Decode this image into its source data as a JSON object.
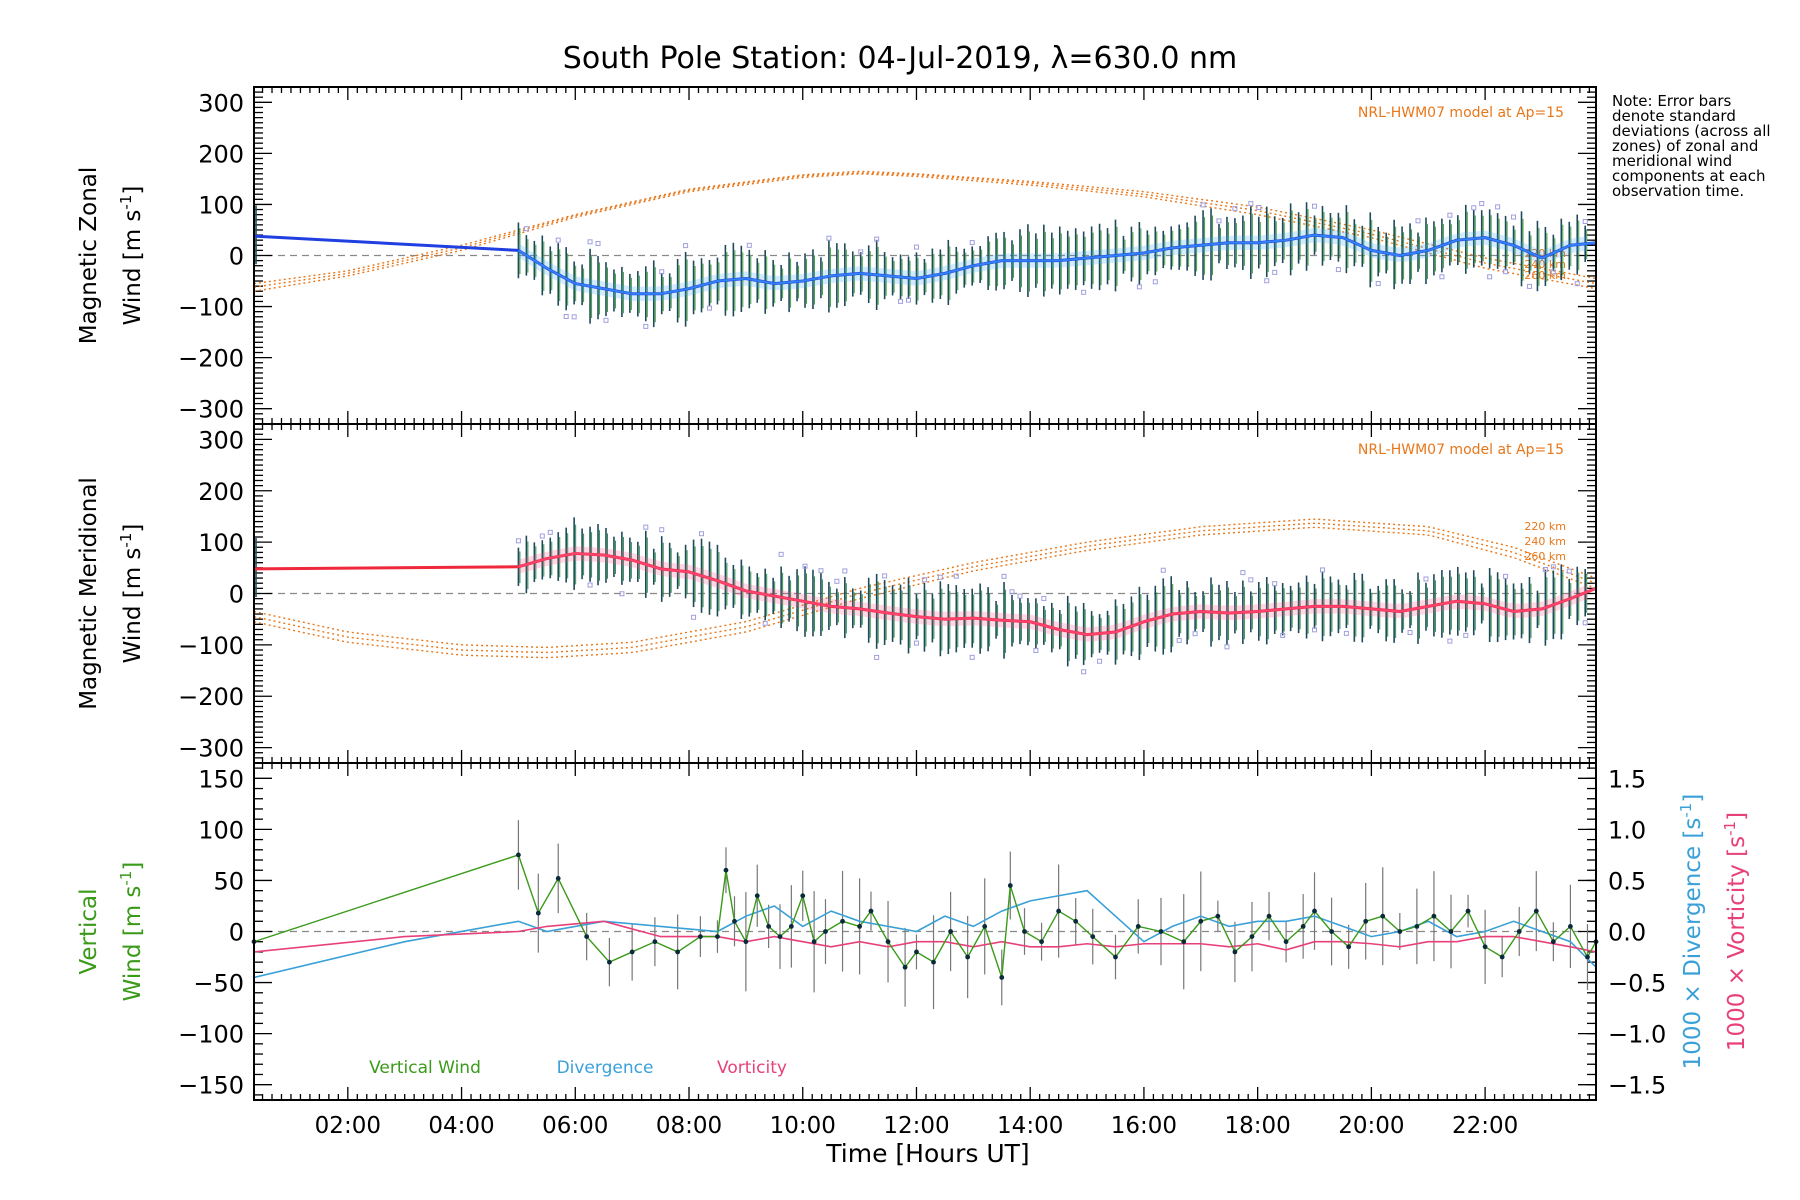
{
  "figure": {
    "title": "South Pole Station: 04-Jul-2019, λ=630.0 nm",
    "xlabel": "Time [Hours UT]",
    "note": "Note: Error bars denote standard deviations (across all zones) of zonal and meridional wind components at each observation time."
  },
  "colors": {
    "zonal": "#1f3fe0",
    "zonal_light": "#3aa0ff",
    "meridional": "#f0283c",
    "meridional_light": "#ff4f8a",
    "model": "#e8771a",
    "errorbar": "#1e4a5a",
    "outlier": "#9f9fe0",
    "vertical": "#3a9a1a",
    "divergence": "#3aa0d8",
    "vorticity": "#e8407a",
    "zero_line": "#888888"
  },
  "chart_data": [
    {
      "type": "line",
      "panel": "zonal",
      "ylabel_line1": "Magnetic Zonal",
      "ylabel_line2": "Wind [m s",
      "ylabel_sup": "-1",
      "ylabel_close": "]",
      "xlim": [
        0.35,
        23.95
      ],
      "ylim": [
        -330,
        330
      ],
      "yticks": [
        -300,
        -200,
        -100,
        0,
        100,
        200,
        300
      ],
      "xticks": [
        2,
        4,
        6,
        8,
        10,
        12,
        14,
        16,
        18,
        20,
        22
      ],
      "xtick_labels": [
        "02:00",
        "04:00",
        "06:00",
        "08:00",
        "10:00",
        "12:00",
        "14:00",
        "16:00",
        "18:00",
        "20:00",
        "22:00"
      ],
      "model_label": "NRL-HWM07 model at Ap=15",
      "model_altitudes": [
        "220 km",
        "240 km",
        "260 km"
      ],
      "series": [
        {
          "name": "Magnetic Zonal Wind",
          "x": [
            0.35,
            5.0,
            5.5,
            6.0,
            6.5,
            7.0,
            7.5,
            8.0,
            8.5,
            9.0,
            9.5,
            10.0,
            10.5,
            11.0,
            11.5,
            12.0,
            12.5,
            13.0,
            13.5,
            14.0,
            14.5,
            15.0,
            15.5,
            16.0,
            16.5,
            17.0,
            17.5,
            18.0,
            18.5,
            19.0,
            19.5,
            20.0,
            20.5,
            21.0,
            21.5,
            22.0,
            22.5,
            23.0,
            23.5,
            23.95
          ],
          "values": [
            38,
            10,
            -25,
            -55,
            -65,
            -75,
            -75,
            -65,
            -50,
            -45,
            -55,
            -50,
            -40,
            -35,
            -40,
            -45,
            -35,
            -20,
            -10,
            -10,
            -10,
            -5,
            0,
            5,
            15,
            20,
            25,
            25,
            30,
            40,
            35,
            10,
            0,
            10,
            30,
            35,
            20,
            -5,
            20,
            25
          ]
        }
      ],
      "model_series": [
        {
          "name": "220 km",
          "x": [
            0.35,
            2,
            4,
            6,
            8,
            10,
            11,
            12,
            14,
            16,
            18,
            20,
            22,
            23.95
          ],
          "values": [
            -55,
            -30,
            20,
            80,
            130,
            158,
            165,
            160,
            145,
            125,
            95,
            50,
            -5,
            -45
          ]
        },
        {
          "name": "240 km",
          "x": [
            0.35,
            2,
            4,
            6,
            8,
            10,
            11,
            12,
            14,
            16,
            18,
            20,
            22,
            23.95
          ],
          "values": [
            -62,
            -35,
            15,
            78,
            128,
            156,
            162,
            158,
            142,
            120,
            88,
            42,
            -15,
            -55
          ]
        },
        {
          "name": "260 km",
          "x": [
            0.35,
            2,
            4,
            6,
            8,
            10,
            11,
            12,
            14,
            16,
            18,
            20,
            22,
            23.95
          ],
          "values": [
            -70,
            -40,
            10,
            75,
            125,
            153,
            160,
            155,
            138,
            115,
            80,
            35,
            -25,
            -65
          ]
        }
      ]
    },
    {
      "type": "line",
      "panel": "meridional",
      "ylabel_line1": "Magnetic Meridional",
      "ylabel_line2": "Wind [m s",
      "ylabel_sup": "-1",
      "ylabel_close": "]",
      "xlim": [
        0.35,
        23.95
      ],
      "ylim": [
        -330,
        330
      ],
      "yticks": [
        -300,
        -200,
        -100,
        0,
        100,
        200,
        300
      ],
      "model_label": "NRL-HWM07 model at Ap=15",
      "model_altitudes": [
        "220 km",
        "240 km",
        "260 km"
      ],
      "series": [
        {
          "name": "Magnetic Meridional Wind",
          "x": [
            0.35,
            5.0,
            5.5,
            6.0,
            6.5,
            7.0,
            7.5,
            8.0,
            8.5,
            9.0,
            9.5,
            10.0,
            10.5,
            11.0,
            11.5,
            12.0,
            12.5,
            13.0,
            13.5,
            14.0,
            14.5,
            15.0,
            15.5,
            16.0,
            16.5,
            17.0,
            17.5,
            18.0,
            18.5,
            19.0,
            19.5,
            20.0,
            20.5,
            21.0,
            21.5,
            22.0,
            22.5,
            23.0,
            23.5,
            23.95
          ],
          "values": [
            48,
            52,
            68,
            78,
            75,
            65,
            48,
            42,
            25,
            5,
            -5,
            -15,
            -25,
            -30,
            -38,
            -45,
            -50,
            -48,
            -52,
            -55,
            -70,
            -80,
            -75,
            -55,
            -40,
            -35,
            -38,
            -35,
            -30,
            -25,
            -25,
            -30,
            -35,
            -25,
            -15,
            -20,
            -35,
            -30,
            -10,
            10
          ]
        }
      ],
      "model_series": [
        {
          "name": "220 km",
          "x": [
            0.35,
            2,
            4,
            5.5,
            7,
            9,
            11,
            13,
            15,
            17,
            19,
            21,
            22.5,
            23.95
          ],
          "values": [
            -35,
            -75,
            -100,
            -105,
            -95,
            -55,
            10,
            60,
            100,
            130,
            145,
            130,
            90,
            30
          ]
        },
        {
          "name": "240 km",
          "x": [
            0.35,
            2,
            4,
            5.5,
            7,
            9,
            11,
            13,
            15,
            17,
            19,
            21,
            22.5,
            23.95
          ],
          "values": [
            -45,
            -85,
            -110,
            -115,
            -105,
            -65,
            0,
            52,
            92,
            122,
            137,
            122,
            80,
            20
          ]
        },
        {
          "name": "260 km",
          "x": [
            0.35,
            2,
            4,
            5.5,
            7,
            9,
            11,
            13,
            15,
            17,
            19,
            21,
            22.5,
            23.95
          ],
          "values": [
            -55,
            -95,
            -120,
            -125,
            -115,
            -75,
            -10,
            44,
            84,
            114,
            129,
            114,
            70,
            10
          ]
        }
      ]
    },
    {
      "type": "line",
      "panel": "vertical",
      "ylabel_line1": "Vertical",
      "ylabel_line2": "Wind [m s",
      "ylabel_sup": "-1",
      "ylabel_close": "]",
      "ylabel_right1": "1000 × Divergence [s",
      "ylabel_right2": "1000 × Vorticity [s",
      "xlim": [
        0.35,
        23.95
      ],
      "ylim": [
        -165,
        165
      ],
      "yticks": [
        -150,
        -100,
        -50,
        0,
        50,
        100,
        150
      ],
      "yticks_right": [
        -1.5,
        -1.0,
        -0.5,
        0.0,
        0.5,
        1.0,
        1.5
      ],
      "yticks_right_labels": [
        "−1.5",
        "−1.0",
        "−0.5",
        "0.0",
        "0.5",
        "1.0",
        "1.5"
      ],
      "ylim_right": [
        -1.65,
        1.65
      ],
      "legend": [
        "Vertical Wind",
        "Divergence",
        "Vorticity"
      ],
      "series": [
        {
          "name": "Vertical Wind",
          "x": [
            0.35,
            5.0,
            5.35,
            5.7,
            6.2,
            6.6,
            7.0,
            7.4,
            7.8,
            8.2,
            8.5,
            8.65,
            8.8,
            9.0,
            9.2,
            9.4,
            9.6,
            9.8,
            10.0,
            10.2,
            10.4,
            10.7,
            11.0,
            11.2,
            11.5,
            11.8,
            12.0,
            12.3,
            12.6,
            12.9,
            13.2,
            13.5,
            13.65,
            13.9,
            14.2,
            14.5,
            14.8,
            15.1,
            15.5,
            15.9,
            16.3,
            16.7,
            17.0,
            17.3,
            17.6,
            17.9,
            18.2,
            18.5,
            18.8,
            19.0,
            19.3,
            19.6,
            19.9,
            20.2,
            20.5,
            20.8,
            21.1,
            21.4,
            21.7,
            22.0,
            22.3,
            22.6,
            22.9,
            23.2,
            23.5,
            23.8,
            23.95
          ],
          "values": [
            -10,
            75,
            18,
            52,
            -5,
            -30,
            -20,
            -10,
            -20,
            -5,
            -5,
            60,
            10,
            -10,
            35,
            5,
            -5,
            5,
            35,
            -10,
            0,
            10,
            5,
            20,
            -10,
            -35,
            -20,
            -30,
            0,
            -25,
            5,
            -45,
            45,
            0,
            -10,
            20,
            10,
            -5,
            -25,
            5,
            0,
            -10,
            10,
            15,
            -20,
            -5,
            15,
            -10,
            5,
            20,
            0,
            -15,
            10,
            15,
            0,
            5,
            15,
            0,
            20,
            -15,
            -25,
            0,
            20,
            -10,
            5,
            -25,
            -10
          ]
        },
        {
          "name": "Divergence",
          "axis": "right",
          "x": [
            0.35,
            3.0,
            5.0,
            5.5,
            6.5,
            7.5,
            8.5,
            9.0,
            9.5,
            10.0,
            10.5,
            11.0,
            11.5,
            12.0,
            12.5,
            13.0,
            13.5,
            14.0,
            14.5,
            15.0,
            15.5,
            16.0,
            16.5,
            17.0,
            17.5,
            18.0,
            18.5,
            19.0,
            19.5,
            20.0,
            20.5,
            21.0,
            21.5,
            22.0,
            22.5,
            23.0,
            23.5,
            23.95
          ],
          "values": [
            -0.45,
            -0.1,
            0.1,
            0.0,
            0.1,
            0.05,
            0.0,
            0.15,
            0.25,
            0.05,
            0.2,
            0.1,
            0.05,
            0.0,
            0.15,
            0.05,
            0.2,
            0.3,
            0.35,
            0.4,
            0.15,
            -0.1,
            0.05,
            0.15,
            0.05,
            0.1,
            0.1,
            0.15,
            0.05,
            -0.05,
            0.0,
            0.1,
            -0.05,
            0.0,
            0.1,
            0.0,
            -0.1,
            -0.35
          ]
        },
        {
          "name": "Vorticity",
          "axis": "right",
          "x": [
            0.35,
            3.0,
            5.0,
            5.5,
            6.5,
            7.5,
            8.5,
            9.0,
            9.5,
            10.0,
            10.5,
            11.0,
            11.5,
            12.0,
            12.5,
            13.0,
            13.5,
            14.0,
            14.5,
            15.0,
            15.5,
            16.0,
            16.5,
            17.0,
            17.5,
            18.0,
            18.5,
            19.0,
            19.5,
            20.0,
            20.5,
            21.0,
            21.5,
            22.0,
            22.5,
            23.0,
            23.5,
            23.95
          ],
          "values": [
            -0.2,
            -0.05,
            0.0,
            0.05,
            0.1,
            -0.05,
            -0.05,
            -0.1,
            -0.05,
            -0.1,
            -0.15,
            -0.1,
            -0.15,
            -0.1,
            -0.1,
            -0.15,
            -0.1,
            -0.15,
            -0.15,
            -0.12,
            -0.15,
            -0.12,
            -0.12,
            -0.12,
            -0.15,
            -0.12,
            -0.18,
            -0.1,
            -0.1,
            -0.12,
            -0.15,
            -0.1,
            -0.1,
            -0.05,
            -0.05,
            -0.1,
            -0.15,
            -0.2
          ]
        }
      ]
    }
  ]
}
